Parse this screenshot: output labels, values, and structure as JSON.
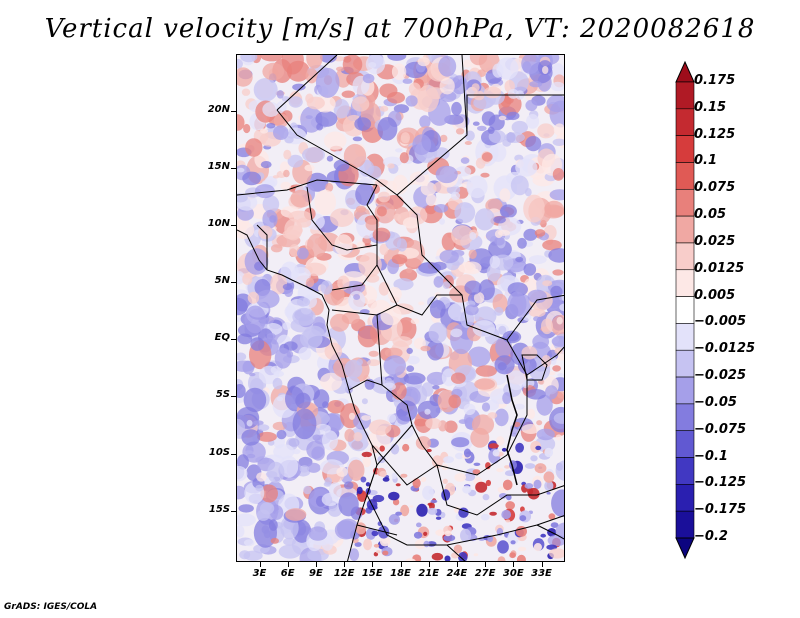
{
  "title": "Vertical velocity [m/s] at 700hPa, VT: 2020082618",
  "credit": "GrADS: IGES/COLA",
  "map": {
    "lat_labels": [
      "20N",
      "15N",
      "10N",
      "5N",
      "EQ",
      "5S",
      "10S",
      "15S"
    ],
    "lat_values": [
      20,
      15,
      10,
      5,
      0,
      -5,
      -10,
      -15
    ],
    "lon_labels": [
      "3E",
      "6E",
      "9E",
      "12E",
      "15E",
      "18E",
      "21E",
      "24E",
      "27E",
      "30E",
      "33E"
    ],
    "lon_values": [
      3,
      6,
      9,
      12,
      15,
      18,
      21,
      24,
      27,
      30,
      33
    ],
    "lat_range": [
      -19.5,
      25
    ],
    "lon_range": [
      0.5,
      35.5
    ]
  },
  "colorbar": {
    "labels": [
      "0.175",
      "0.15",
      "0.125",
      "0.1",
      "0.075",
      "0.05",
      "0.025",
      "0.0125",
      "0.005",
      "−0.005",
      "−0.0125",
      "−0.025",
      "−0.05",
      "−0.075",
      "−0.1",
      "−0.125",
      "−0.175",
      "−0.2"
    ],
    "colors": [
      "#9e0d1b",
      "#b01a25",
      "#c42a30",
      "#d63c3c",
      "#e05a55",
      "#e8807b",
      "#f0a8a3",
      "#f8cdca",
      "#fde8e6",
      "#ffffff",
      "#e3e2fa",
      "#c6c3f2",
      "#a59fe9",
      "#837cdf",
      "#6159d2",
      "#4138c2",
      "#2a1fb0",
      "#1a0f9a",
      "#0c0580"
    ]
  }
}
